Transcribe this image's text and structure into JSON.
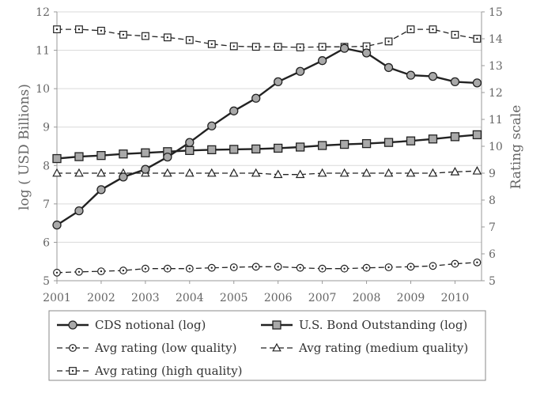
{
  "chart_data": {
    "type": "line",
    "x": [
      2001,
      2001.5,
      2002,
      2002.5,
      2003,
      2003.5,
      2004,
      2004.5,
      2005,
      2005.5,
      2006,
      2006.5,
      2007,
      2007.5,
      2008,
      2008.5,
      2009,
      2009.5,
      2010,
      2010.5
    ],
    "x_ticks": [
      "2001",
      "2002",
      "2003",
      "2004",
      "2005",
      "2006",
      "2007",
      "2008",
      "2009",
      "2010"
    ],
    "xlim": [
      2001,
      2010.6
    ],
    "ylabel_left": "log ( USD Billions)",
    "ylabel_right": "Rating scale",
    "ylim_left": [
      5,
      12
    ],
    "ylim_right": [
      5,
      15
    ],
    "y_ticks_left": [
      "5",
      "6",
      "7",
      "8",
      "9",
      "10",
      "11",
      "12"
    ],
    "y_ticks_right": [
      "5",
      "6",
      "7",
      "8",
      "9",
      "10",
      "11",
      "12",
      "13",
      "14",
      "15"
    ],
    "series": [
      {
        "name": "CDS notional (log)",
        "axis": "left",
        "color": "#222222",
        "line_style": "solid",
        "marker": "circle-filled",
        "values": [
          6.45,
          6.82,
          7.37,
          7.7,
          7.9,
          8.22,
          8.6,
          9.03,
          9.42,
          9.75,
          10.18,
          10.45,
          10.73,
          11.05,
          10.93,
          10.55,
          10.35,
          10.32,
          10.18,
          10.15
        ]
      },
      {
        "name": "U.S. Bond Outstanding (log)",
        "axis": "left",
        "color": "#222222",
        "line_style": "solid",
        "marker": "square-filled",
        "values": [
          8.18,
          8.23,
          8.26,
          8.3,
          8.33,
          8.36,
          8.39,
          8.41,
          8.42,
          8.43,
          8.45,
          8.48,
          8.52,
          8.55,
          8.57,
          8.6,
          8.64,
          8.69,
          8.75,
          8.8
        ]
      },
      {
        "name": "Avg rating (low quality)",
        "axis": "right",
        "color": "#222222",
        "line_style": "dashed",
        "marker": "circle-open-dot",
        "values": [
          5.3,
          5.33,
          5.35,
          5.38,
          5.45,
          5.45,
          5.45,
          5.48,
          5.5,
          5.52,
          5.52,
          5.48,
          5.45,
          5.45,
          5.48,
          5.5,
          5.52,
          5.55,
          5.63,
          5.68
        ]
      },
      {
        "name": "Avg rating (medium quality)",
        "axis": "right",
        "color": "#222222",
        "line_style": "dashed",
        "marker": "triangle-open",
        "values": [
          9.0,
          9.0,
          9.0,
          9.0,
          9.0,
          9.0,
          9.0,
          9.0,
          9.0,
          9.0,
          8.95,
          8.95,
          9.0,
          9.0,
          9.0,
          9.0,
          9.0,
          9.0,
          9.05,
          9.08
        ]
      },
      {
        "name": "Avg rating (high quality)",
        "axis": "right",
        "color": "#222222",
        "line_style": "dashed",
        "marker": "square-open-dot",
        "values": [
          14.35,
          14.35,
          14.3,
          14.15,
          14.1,
          14.05,
          13.95,
          13.8,
          13.72,
          13.7,
          13.7,
          13.68,
          13.7,
          13.7,
          13.72,
          13.9,
          14.35,
          14.35,
          14.15,
          14.0
        ]
      }
    ],
    "grid": "horizontal",
    "legend_placement": "bottom"
  }
}
